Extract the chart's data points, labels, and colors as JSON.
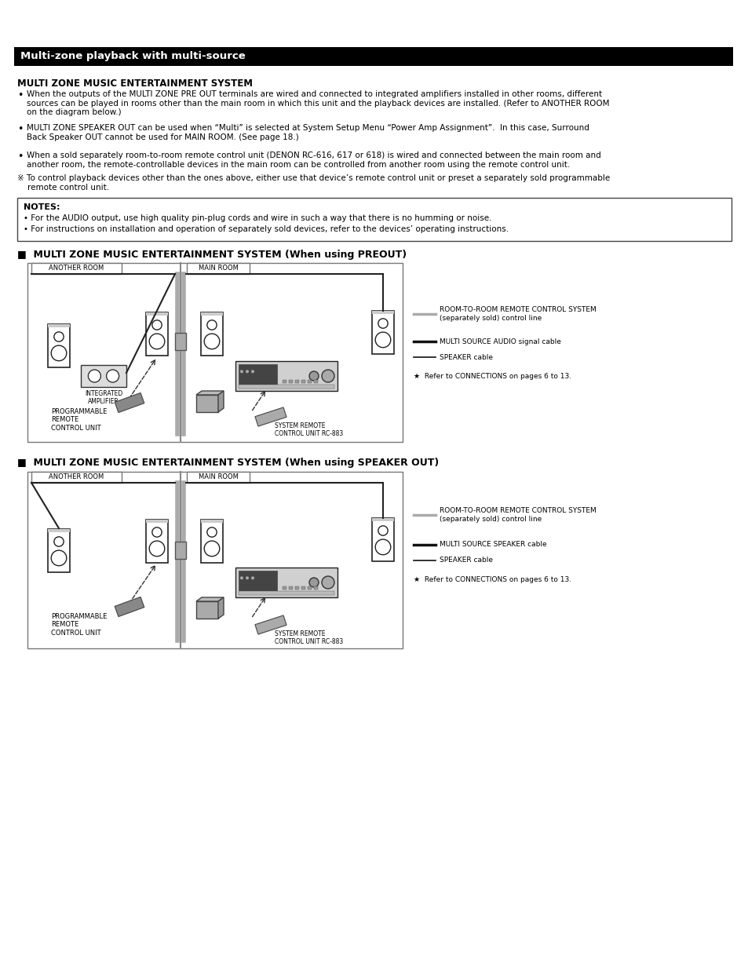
{
  "title": "Multi-zone playback with multi-source",
  "section_title": "MULTI ZONE MUSIC ENTERTAINMENT SYSTEM",
  "bullet1": "When the outputs of the MULTI ZONE PRE OUT terminals are wired and connected to integrated amplifiers installed in other rooms, different\nsources can be played in rooms other than the main room in which this unit and the playback devices are installed. (Refer to ANOTHER ROOM\non the diagram below.)",
  "bullet2": "MULTI ZONE SPEAKER OUT can be used when “Multi” is selected at System Setup Menu “Power Amp Assignment”.  In this case, Surround\nBack Speaker OUT cannot be used for MAIN ROOM. (See page 18.)",
  "bullet3": "When a sold separately room-to-room remote control unit (DENON RC-616, 617 or 618) is wired and connected between the main room and\nanother room, the remote-controllable devices in the main room can be controlled from another room using the remote control unit.",
  "note_symbol": "※ To control playback devices other than the ones above, either use that device’s remote control unit or preset a separately sold programmable\n    remote control unit.",
  "notes_title": "NOTES:",
  "note_item1": "For the AUDIO output, use high quality pin-plug cords and wire in such a way that there is no humming or noise.",
  "note_item2": "For instructions on installation and operation of separately sold devices, refer to the devices’ operating instructions.",
  "diagram1_title": "■  MULTI ZONE MUSIC ENTERTAINMENT SYSTEM (When using PREOUT)",
  "diagram2_title": "■  MULTI ZONE MUSIC ENTERTAINMENT SYSTEM (When using SPEAKER OUT)",
  "another_room": "ANOTHER ROOM",
  "main_room": "MAIN ROOM",
  "integrated_amplifier": "INTEGRATED\nAMPLIFIER",
  "programmable_remote": "PROGRAMMABLE\nREMOTE\nCONTROL UNIT",
  "system_remote": "SYSTEM REMOTE\nCONTROL UNIT RC-883",
  "legend1_text": "ROOM-TO-ROOM REMOTE CONTROL SYSTEM\n(separately sold) control line",
  "legend2_text": "MULTI SOURCE AUDIO signal cable",
  "legend3_text": "SPEAKER cable",
  "legend_note": "★  Refer to CONNECTIONS on pages 6 to 13.",
  "legend2b_text": "MULTI SOURCE SPEAKER cable",
  "bg_color": "#ffffff",
  "header_bg": "#000000",
  "header_fg": "#ffffff",
  "border_color": "#000000",
  "text_color": "#000000"
}
